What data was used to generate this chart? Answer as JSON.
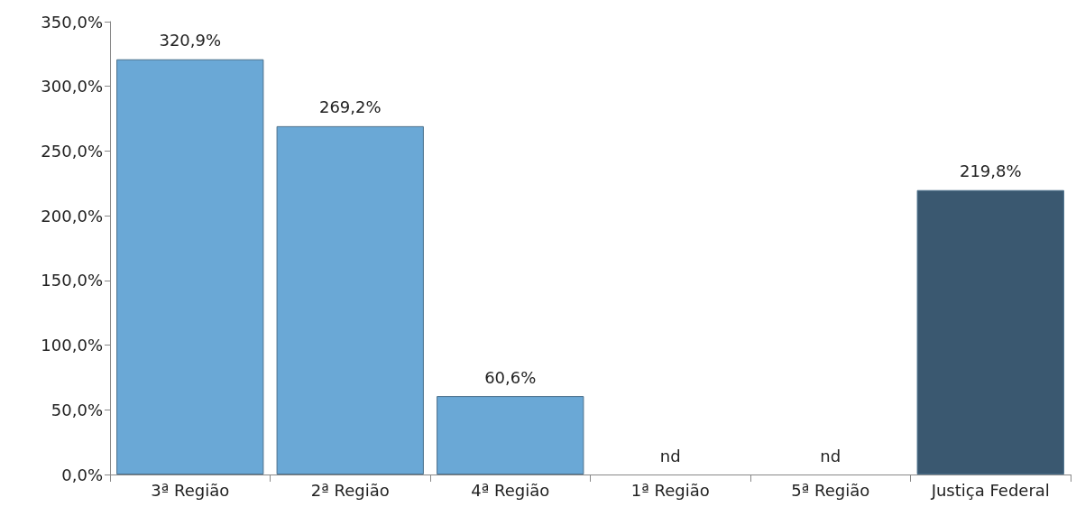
{
  "chart_data": {
    "type": "bar",
    "categories": [
      "3ª Região",
      "2ª Região",
      "4ª Região",
      "1ª Região",
      "5ª Região",
      "Justiça Federal"
    ],
    "values": [
      320.9,
      269.2,
      60.6,
      null,
      null,
      219.8
    ],
    "colors": [
      "#6aa8d6",
      "#6aa8d6",
      "#6aa8d6",
      "#6aa8d6",
      "#6aa8d6",
      "#3a5870"
    ],
    "value_labels": [
      "320,9%",
      "269,2%",
      "60,6%",
      "nd",
      "nd",
      "219,8%"
    ],
    "ylim": [
      0,
      350
    ],
    "yticks": [
      {
        "value": 0,
        "label": "0,0%"
      },
      {
        "value": 50,
        "label": "50,0%"
      },
      {
        "value": 100,
        "label": "100,0%"
      },
      {
        "value": 150,
        "label": "150,0%"
      },
      {
        "value": 200,
        "label": "200,0%"
      },
      {
        "value": 250,
        "label": "250,0%"
      },
      {
        "value": 300,
        "label": "300,0%"
      },
      {
        "value": 350,
        "label": "350,0%"
      }
    ],
    "grid": false
  }
}
